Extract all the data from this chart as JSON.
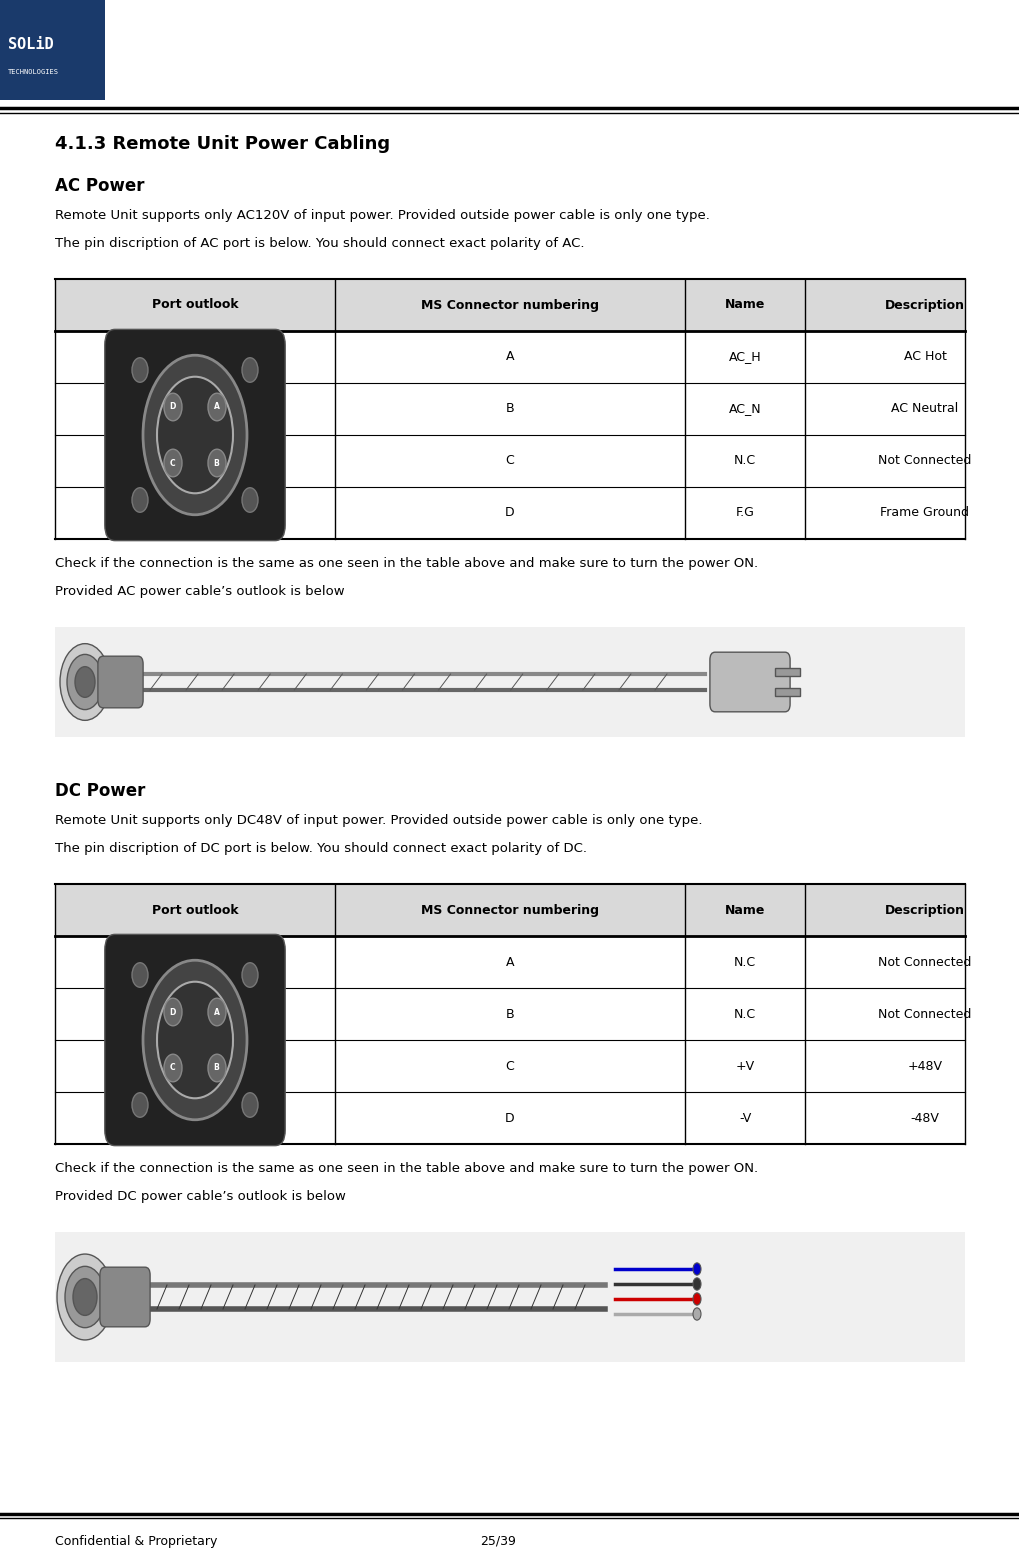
{
  "page_width": 10.19,
  "page_height": 15.63,
  "bg_color": "#ffffff",
  "header_bar_color": "#1a3a6b",
  "header_line_color": "#000000",
  "footer_line_color": "#000000",
  "logo_text": "SOLiD\nTECHNOLOGIES",
  "logo_bg": "#1a3a6b",
  "footer_left": "Confidential & Proprietary",
  "footer_right": "25/39",
  "section_title": "4.1.3 Remote Unit Power Cabling",
  "ac_title": "AC Power",
  "ac_body1": "Remote Unit supports only AC120V of input power. Provided outside power cable is only one type.",
  "ac_body2": "The pin discription of AC port is below. You should connect exact polarity of AC.",
  "ac_check": "Check if the connection is the same as one seen in the table above and make sure to turn the power ON.",
  "ac_cable": "Provided AC power cable’s outlook is below",
  "dc_title": "DC Power",
  "dc_body1": "Remote Unit supports only DC48V of input power. Provided outside power cable is only one type.",
  "dc_body2": "The pin discription of DC port is below. You should connect exact polarity of DC.",
  "dc_check": "Check if the connection is the same as one seen in the table above and make sure to turn the power ON.",
  "dc_cable": "Provided DC power cable’s outlook is below",
  "table_header_bg": "#d9d9d9",
  "table_header_color": "#000000",
  "table_line_color": "#000000",
  "ac_table_headers": [
    "Port outlook",
    "MS Connector numbering",
    "Name",
    "Description"
  ],
  "ac_table_rows": [
    [
      "A",
      "AC_H",
      "AC Hot"
    ],
    [
      "B",
      "AC_N",
      "AC Neutral"
    ],
    [
      "C",
      "N.C",
      "Not Connected"
    ],
    [
      "D",
      "F.G",
      "Frame Ground"
    ]
  ],
  "dc_table_headers": [
    "Port outlook",
    "MS Connector numbering",
    "Name",
    "Description"
  ],
  "dc_table_rows": [
    [
      "A",
      "N.C",
      "Not Connected"
    ],
    [
      "B",
      "N.C",
      "Not Connected"
    ],
    [
      "C",
      "+V",
      "+48V"
    ],
    [
      "D",
      "-V",
      "-48V"
    ]
  ]
}
